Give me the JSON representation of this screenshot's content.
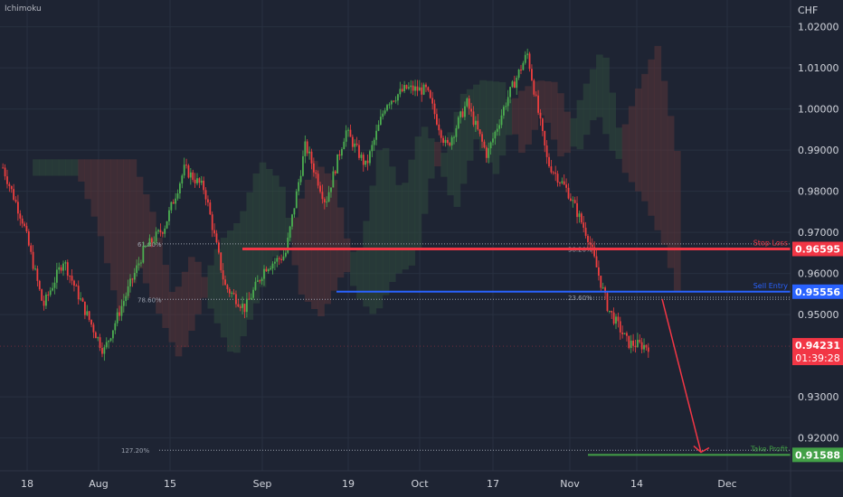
{
  "indicator": "Ichimoku",
  "currency": "CHF",
  "colors": {
    "background": "#1e2433",
    "grid": "#283040",
    "bull": "#4caf50",
    "bear": "#ef3f3f",
    "stop_loss": "#f23645",
    "sell_entry": "#2962ff",
    "take_profit": "#43a047",
    "axis_text": "#d1d4dc",
    "cloud_bull": "#2f4a3c",
    "cloud_bear": "#5a3438"
  },
  "chart_data": {
    "type": "candlestick",
    "ylim": [
      0.912,
      1.0265
    ],
    "price_ticks": [
      "1.02000",
      "1.01000",
      "1.00000",
      "0.99000",
      "0.98000",
      "0.97000",
      "0.96000",
      "0.95000",
      "0.93000",
      "0.92000"
    ],
    "x_ticks": [
      "18",
      "Aug",
      "15",
      "Sep",
      "19",
      "Oct",
      "17",
      "Nov",
      "14",
      "Dec"
    ],
    "levels": [
      {
        "name": "Stop Loss",
        "price": 0.96595,
        "price_label": "0.96595",
        "color": "#f23645"
      },
      {
        "name": "Sell Entry",
        "price": 0.95556,
        "price_label": "0.95556",
        "color": "#2962ff"
      },
      {
        "name": "Take Profit",
        "price": 0.91588,
        "price_label": "0.91588",
        "color": "#43a047"
      }
    ],
    "fib_levels": [
      {
        "label": "61.80%",
        "price": 0.9672
      },
      {
        "label": "78.60%",
        "price": 0.9537
      },
      {
        "label": "127.20%",
        "price": 0.917
      },
      {
        "label": "38.20%",
        "price": 0.9659
      },
      {
        "label": "23.60%",
        "price": 0.9542
      }
    ],
    "current_price": {
      "price": 0.94231,
      "label": "0.94231",
      "countdown": "01:39:28"
    },
    "path_points": [
      [
        0.987,
        0.9845
      ],
      [
        0.9705,
        0.9745
      ],
      [
        0.951,
        0.953
      ],
      [
        0.9645,
        0.962
      ],
      [
        0.9505,
        0.953
      ],
      [
        0.94,
        0.942
      ],
      [
        0.9525,
        0.9545
      ],
      [
        0.965,
        0.9665
      ],
      [
        0.972,
        0.9705
      ],
      [
        0.985,
        0.986
      ],
      [
        0.979,
        0.982
      ],
      [
        0.954,
        0.96
      ],
      [
        0.95,
        0.953
      ],
      [
        0.96,
        0.963
      ],
      [
        0.964,
        0.965
      ],
      [
        0.9935,
        0.989
      ],
      [
        0.9755,
        0.979
      ],
      [
        0.9955,
        0.994
      ],
      [
        0.985,
        0.987
      ],
      [
        1.003,
        1.0
      ],
      [
        1.007,
        1.003
      ],
      [
        1.005,
        1.004
      ],
      [
        0.988,
        0.993
      ],
      [
        1.002,
        1.001
      ],
      [
        0.9875,
        0.99
      ],
      [
        1.003,
        1.002
      ],
      [
        1.014,
        1.013
      ],
      [
        0.985,
        0.989
      ],
      [
        0.979,
        0.981
      ],
      [
        0.968,
        0.97
      ],
      [
        0.95,
        0.953
      ],
      [
        0.944,
        0.942
      ],
      [
        0.9423,
        0.9423
      ]
    ]
  }
}
